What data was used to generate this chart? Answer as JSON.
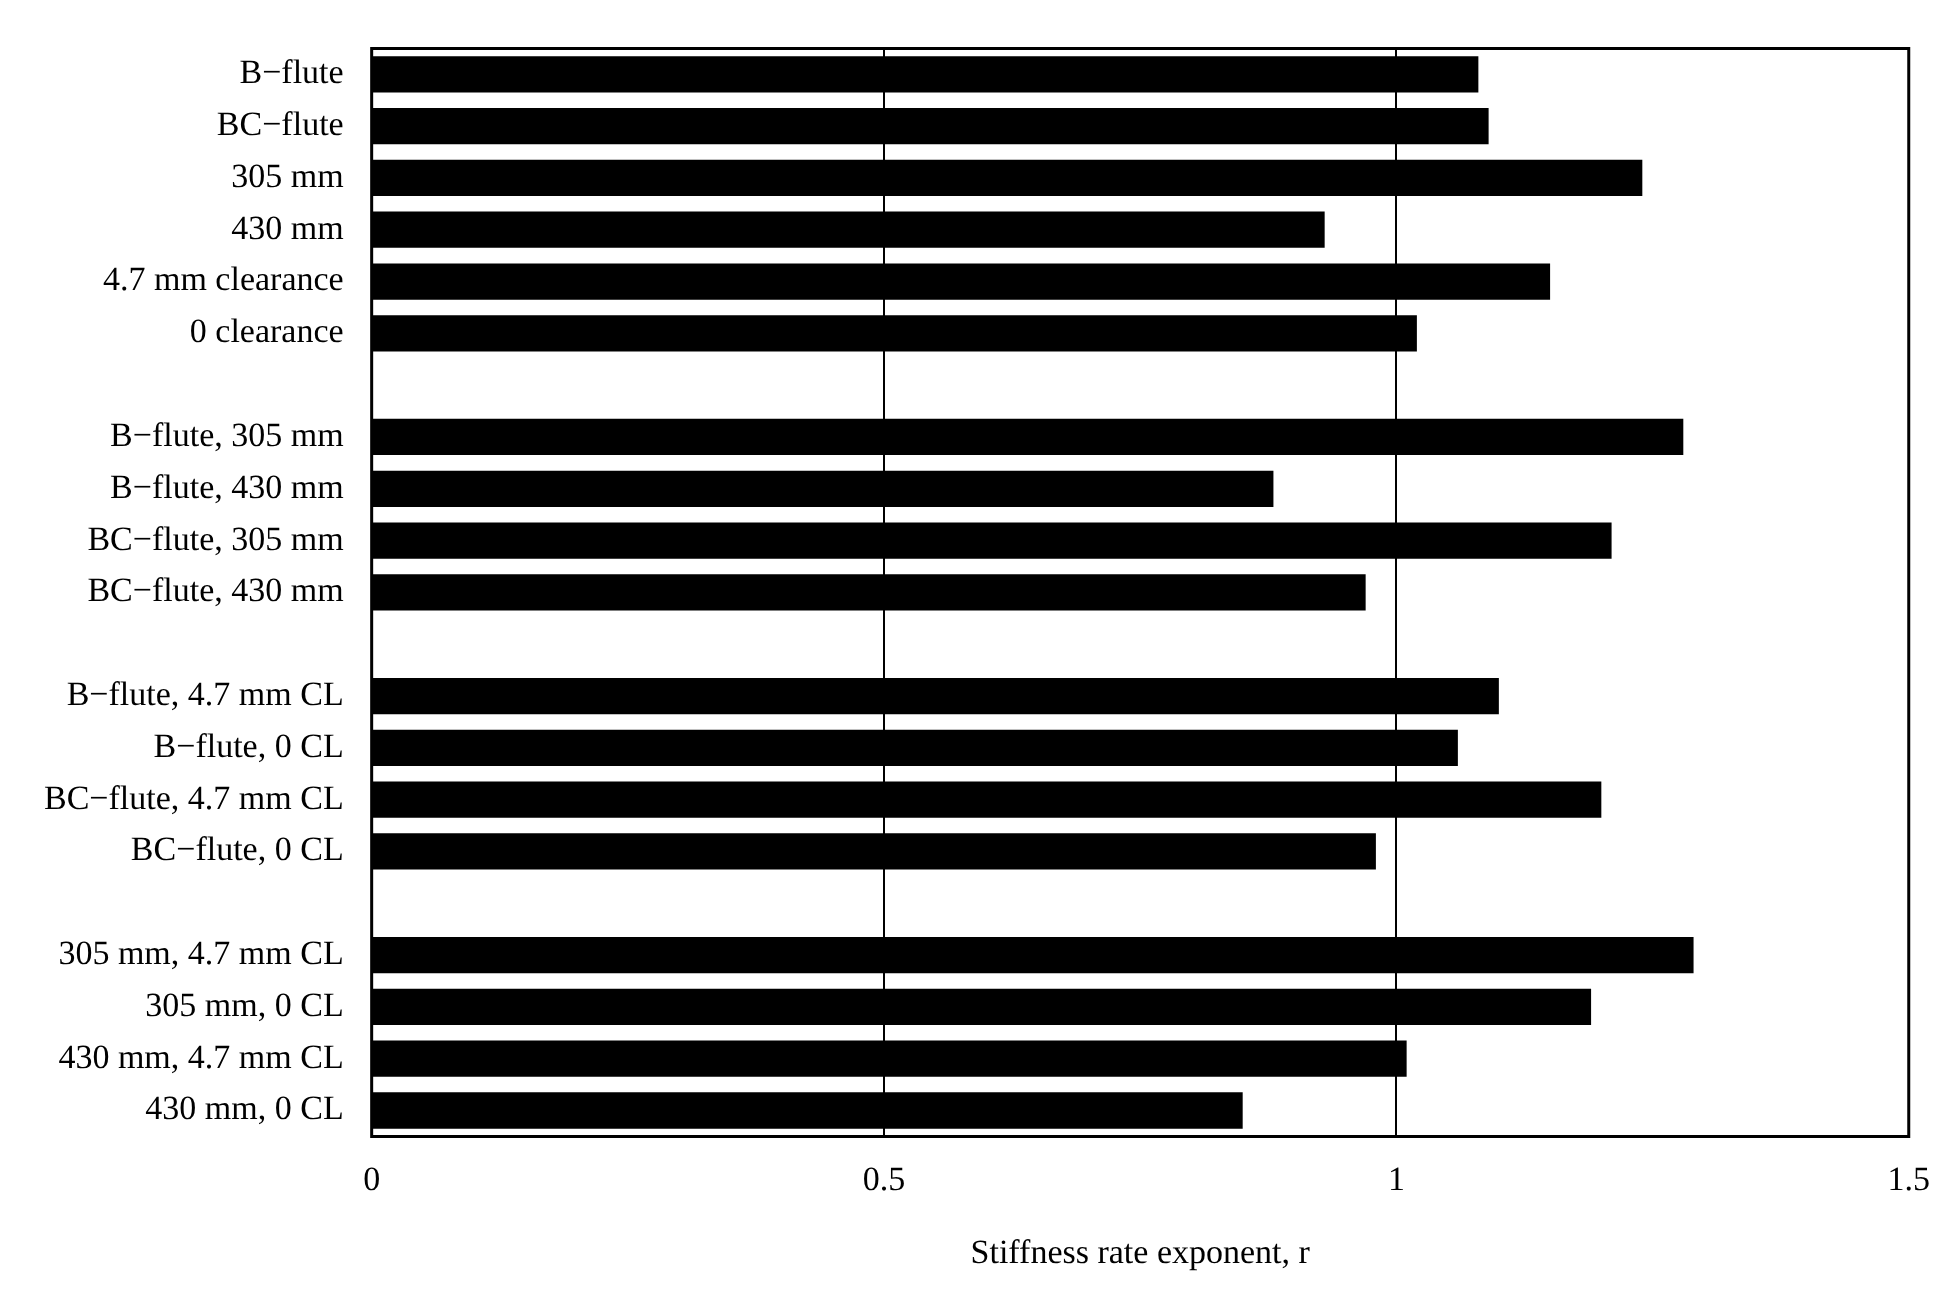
{
  "chart_data": {
    "type": "bar",
    "orientation": "horizontal",
    "xlabel": "Stiffness rate exponent, r",
    "categories": [
      "B−flute",
      "BC−flute",
      "305 mm",
      "430 mm",
      "4.7 mm clearance",
      "0 clearance",
      null,
      "B−flute, 305 mm",
      "B−flute, 430 mm",
      "BC−flute, 305 mm",
      "BC−flute, 430 mm",
      null,
      "B−flute, 4.7 mm CL",
      "B−flute, 0 CL",
      "BC−flute, 4.7 mm CL",
      "BC−flute, 0 CL",
      null,
      "305 mm, 4.7 mm CL",
      "305 mm, 0 CL",
      "430 mm, 4.7 mm CL",
      "430 mm, 0 CL"
    ],
    "values": [
      1.08,
      1.09,
      1.24,
      0.93,
      1.15,
      1.02,
      null,
      1.28,
      0.88,
      1.21,
      0.97,
      null,
      1.1,
      1.06,
      1.2,
      0.98,
      null,
      1.29,
      1.19,
      1.01,
      0.85
    ],
    "color": "#000000",
    "xlim": [
      0,
      1.5
    ],
    "xticks": [
      0,
      0.5,
      1,
      1.5
    ],
    "grid": "x",
    "legend": false
  }
}
